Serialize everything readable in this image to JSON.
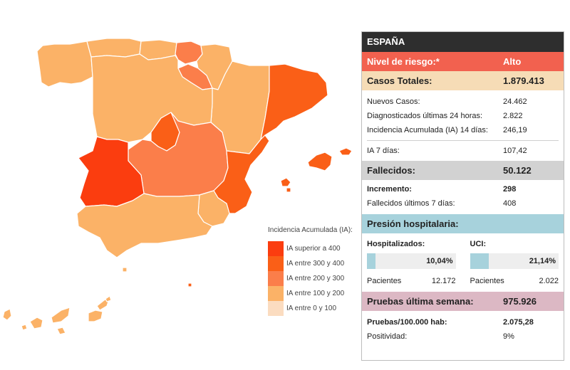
{
  "legend": {
    "title": "Incidencia Acumulada (IA):",
    "items": [
      {
        "label": "IA superior a 400",
        "color": "#fb3d0f"
      },
      {
        "label": "IA entre 300 y 400",
        "color": "#fa5f17"
      },
      {
        "label": "IA entre 200 y 300",
        "color": "#fb7e4a"
      },
      {
        "label": "IA entre 100 y 200",
        "color": "#fbb267"
      },
      {
        "label": "IA entre 0 y 100",
        "color": "#fbdcc0"
      }
    ]
  },
  "regions": [
    {
      "name": "Galicia",
      "color": "#fbb267"
    },
    {
      "name": "Asturias",
      "color": "#fbb267"
    },
    {
      "name": "Cantabria",
      "color": "#fbb267"
    },
    {
      "name": "País Vasco",
      "color": "#fb7e4a"
    },
    {
      "name": "Navarra",
      "color": "#fbb267"
    },
    {
      "name": "La Rioja",
      "color": "#fb7e4a"
    },
    {
      "name": "Aragón",
      "color": "#fbb267"
    },
    {
      "name": "Cataluña",
      "color": "#fa5f17"
    },
    {
      "name": "Castilla y León",
      "color": "#fbb267"
    },
    {
      "name": "Madrid",
      "color": "#fa5f17"
    },
    {
      "name": "Castilla-La Mancha",
      "color": "#fb7e4a"
    },
    {
      "name": "Extremadura",
      "color": "#fb3d0f"
    },
    {
      "name": "Comunidad Valenciana",
      "color": "#fa5f17"
    },
    {
      "name": "Murcia",
      "color": "#fbb267"
    },
    {
      "name": "Andalucía",
      "color": "#fbb267"
    },
    {
      "name": "Baleares",
      "color": "#fa5f17"
    },
    {
      "name": "Canarias",
      "color": "#fbb267"
    },
    {
      "name": "Ceuta",
      "color": "#fbb267"
    },
    {
      "name": "Melilla",
      "color": "#fa5f17"
    }
  ],
  "panel": {
    "title": "ESPAÑA",
    "risk": {
      "label": "Nivel de riesgo:*",
      "value": "Alto"
    },
    "casos": {
      "label": "Casos Totales:",
      "value": "1.879.413",
      "rows": [
        {
          "label": "Nuevos Casos:",
          "value": "24.462"
        },
        {
          "label": "Diagnosticados últimas 24 horas:",
          "value": "2.822"
        },
        {
          "label": "Incidencia Acumulada (IA) 14 días:",
          "value": "246,19"
        }
      ],
      "ia7": {
        "label": "IA 7 días:",
        "value": "107,42"
      }
    },
    "fallecidos": {
      "label": "Fallecidos:",
      "value": "50.122",
      "rows": [
        {
          "label": "Incremento:",
          "value": "298"
        },
        {
          "label": "Fallecidos últimos 7 días:",
          "value": "408"
        }
      ]
    },
    "presion": {
      "label": "Presión hospitalaria:",
      "hosp": {
        "label": "Hospitalizados:",
        "pct": "10,04%",
        "fraction": 0.1004,
        "pac_label": "Pacientes",
        "pac_value": "12.172"
      },
      "uci": {
        "label": "UCI:",
        "pct": "21,14%",
        "fraction": 0.2114,
        "pac_label": "Pacientes",
        "pac_value": "2.022"
      }
    },
    "pruebas": {
      "label": "Pruebas última semana:",
      "value": "975.926",
      "rows": [
        {
          "label": "Pruebas/100.000 hab:",
          "value": "2.075,28"
        },
        {
          "label": "Positividad:",
          "value": "9%"
        }
      ]
    }
  }
}
